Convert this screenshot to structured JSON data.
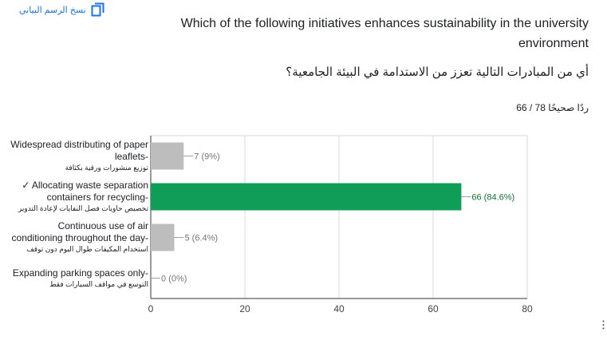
{
  "toolbar": {
    "copy_label": "نسخ الرسم البياني"
  },
  "question": {
    "title_en": "Which of the following initiatives enhances sustainability in the university environment",
    "title_ar": "أي من المبادرات التالية تعزز من الاستدامة في البيئة الجامعية؟",
    "score": "66 / 78 ردًا صحيحًا"
  },
  "colors": {
    "correct": "#0f9d58",
    "incorrect": "#bdbdbd",
    "accent": "#1a73e8"
  },
  "chart_data": {
    "type": "bar",
    "orientation": "horizontal",
    "categories": [
      {
        "en": "Widespread distributing of paper leaflets-",
        "ar": "توزيع منشورات ورقية بكثافة",
        "correct": false
      },
      {
        "en": "✓ Allocating waste separation containers for recycling-",
        "ar": "تخصيص حاويات فصل النفايات لإعادة التدوير",
        "correct": true
      },
      {
        "en": "Continuous use of air conditioning throughout the day-",
        "ar": "استخدام المكيفات طوال اليوم دون توقف",
        "correct": false
      },
      {
        "en": "Expanding parking spaces only-",
        "ar": "التوسع في مواقف السيارات فقط",
        "correct": false
      }
    ],
    "values": [
      7,
      66,
      5,
      0
    ],
    "value_labels": [
      "7 (9%)",
      "66 (84.6%)",
      "5 (6.4%)",
      "0 (0%)"
    ],
    "xlim": [
      0,
      80
    ],
    "xticks": [
      0,
      20,
      40,
      60,
      80
    ],
    "grid": true
  }
}
